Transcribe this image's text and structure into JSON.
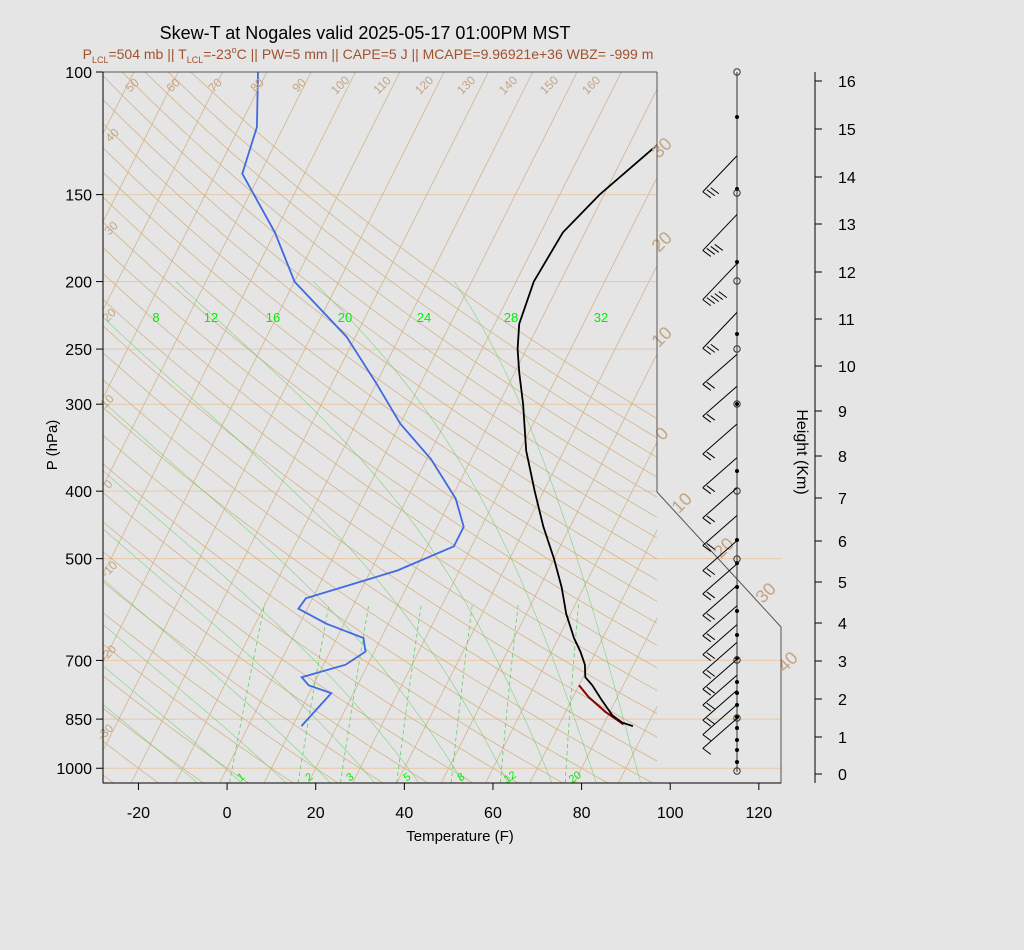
{
  "colors": {
    "background": "#e5e5e5",
    "isotherm": "#d2b48c",
    "isobar": "#e8c8a8",
    "dry_adiabat": "#d2b48c",
    "label_tan": "#c4a484",
    "mixing_ratio": "#66cc66",
    "mixing_label": "#00ee00",
    "temperature": "#000000",
    "dewpoint": "#4169e1",
    "parcel": "#8b0000",
    "subtitle": "#a0522d",
    "title": "#000000"
  },
  "title": "Skew-T at Nogales valid 2025-05-17 01:00PM MST",
  "subtitle": {
    "p_lcl": "P",
    "p_lcl_sub": "LCL",
    "p_lcl_val": "=504 mb || T",
    "t_lcl_sub": "LCL",
    "t_lcl_val": "=-23",
    "t_lcl_sup": "o",
    "rest": "C || PW=5 mm || CAPE=5 J || MCAPE=9.96921e+36 WBZ= -999 m"
  },
  "chart_data": {
    "type": "line",
    "xlabel": "Temperature (F)",
    "ylabel": "P (hPa)",
    "y2label": "Height (Km)",
    "x_ticks": [
      -20,
      0,
      20,
      40,
      60,
      80,
      100,
      120
    ],
    "xlim": [
      -28,
      125
    ],
    "y_scale": "log",
    "ylim": [
      1050,
      100
    ],
    "pressure_ticks": [
      100,
      150,
      200,
      250,
      300,
      400,
      500,
      700,
      850,
      1000
    ],
    "height_ticks": [
      0,
      1,
      2,
      3,
      4,
      5,
      6,
      7,
      8,
      9,
      10,
      11,
      12,
      13,
      14,
      15,
      16
    ],
    "isotherm_labels": [
      -30,
      -20,
      -10,
      0,
      10,
      20,
      30,
      40,
      50,
      60,
      70,
      80,
      90,
      100,
      110,
      120,
      130,
      140,
      150,
      160
    ],
    "mixing_ratio_top_labels": [
      8,
      12,
      16,
      20,
      24,
      28,
      32
    ],
    "mixing_ratio_bottom_labels": [
      1,
      2,
      3,
      5,
      8,
      12,
      20
    ],
    "temperature_profile": [
      {
        "p": 870,
        "t": 86.8
      },
      {
        "p": 860,
        "t": 84.0
      },
      {
        "p": 840,
        "t": 81.0
      },
      {
        "p": 800,
        "t": 77.0
      },
      {
        "p": 760,
        "t": 73.0
      },
      {
        "p": 740,
        "t": 70.5
      },
      {
        "p": 710,
        "t": 69.0
      },
      {
        "p": 680,
        "t": 66.5
      },
      {
        "p": 650,
        "t": 63.5
      },
      {
        "p": 600,
        "t": 59.0
      },
      {
        "p": 550,
        "t": 55.0
      },
      {
        "p": 500,
        "t": 50.0
      },
      {
        "p": 450,
        "t": 44.0
      },
      {
        "p": 400,
        "t": 38.0
      },
      {
        "p": 350,
        "t": 31.5
      },
      {
        "p": 300,
        "t": 25.5
      },
      {
        "p": 270,
        "t": 21.0
      },
      {
        "p": 250,
        "t": 18.0
      },
      {
        "p": 230,
        "t": 15.5
      },
      {
        "p": 200,
        "t": 14.0
      },
      {
        "p": 170,
        "t": 15.0
      },
      {
        "p": 150,
        "t": 19.0
      },
      {
        "p": 120,
        "t": 29.0
      },
      {
        "p": 100,
        "t": 40.0
      }
    ],
    "dewpoint_profile": [
      {
        "p": 870,
        "td": 12.0
      },
      {
        "p": 780,
        "td": 15.0
      },
      {
        "p": 760,
        "td": 9.0
      },
      {
        "p": 740,
        "td": 6.5
      },
      {
        "p": 710,
        "td": 15.0
      },
      {
        "p": 680,
        "td": 18.0
      },
      {
        "p": 650,
        "td": 16.0
      },
      {
        "p": 620,
        "td": 6.0
      },
      {
        "p": 590,
        "td": -2.0
      },
      {
        "p": 570,
        "td": -1.5
      },
      {
        "p": 520,
        "td": 16.0
      },
      {
        "p": 480,
        "td": 26.0
      },
      {
        "p": 450,
        "td": 26.0
      },
      {
        "p": 410,
        "td": 21.0
      },
      {
        "p": 360,
        "td": 11.0
      },
      {
        "p": 320,
        "td": 0.0
      },
      {
        "p": 280,
        "td": -10.0
      },
      {
        "p": 240,
        "td": -22.0
      },
      {
        "p": 200,
        "td": -40.0
      },
      {
        "p": 170,
        "td": -50.0
      },
      {
        "p": 140,
        "td": -64.0
      },
      {
        "p": 120,
        "td": -66.0
      },
      {
        "p": 100,
        "td": -72.0
      }
    ],
    "parcel_profile": [
      {
        "p": 865,
        "t": 84.5
      },
      {
        "p": 830,
        "t": 79.0
      },
      {
        "p": 790,
        "t": 73.5
      },
      {
        "p": 760,
        "t": 70.0
      }
    ],
    "wind_barbs": [
      {
        "p": 140,
        "dir": 250,
        "kt": 25
      },
      {
        "p": 170,
        "dir": 250,
        "kt": 35
      },
      {
        "p": 200,
        "dir": 250,
        "kt": 45
      },
      {
        "p": 235,
        "dir": 250,
        "kt": 25
      },
      {
        "p": 270,
        "dir": 250,
        "kt": 20
      },
      {
        "p": 300,
        "dir": 250,
        "kt": 20
      },
      {
        "p": 340,
        "dir": 250,
        "kt": 20
      },
      {
        "p": 380,
        "dir": 250,
        "kt": 20
      },
      {
        "p": 420,
        "dir": 260,
        "kt": 15
      },
      {
        "p": 460,
        "dir": 260,
        "kt": 15
      },
      {
        "p": 500,
        "dir": 260,
        "kt": 15
      },
      {
        "p": 540,
        "dir": 260,
        "kt": 15
      },
      {
        "p": 580,
        "dir": 260,
        "kt": 15
      },
      {
        "p": 620,
        "dir": 260,
        "kt": 15
      },
      {
        "p": 660,
        "dir": 260,
        "kt": 15
      },
      {
        "p": 700,
        "dir": 260,
        "kt": 15
      },
      {
        "p": 740,
        "dir": 260,
        "kt": 15
      },
      {
        "p": 780,
        "dir": 255,
        "kt": 15
      },
      {
        "p": 820,
        "dir": 250,
        "kt": 15
      },
      {
        "p": 860,
        "dir": 245,
        "kt": 10
      },
      {
        "p": 900,
        "dir": 240,
        "kt": 10
      }
    ]
  }
}
